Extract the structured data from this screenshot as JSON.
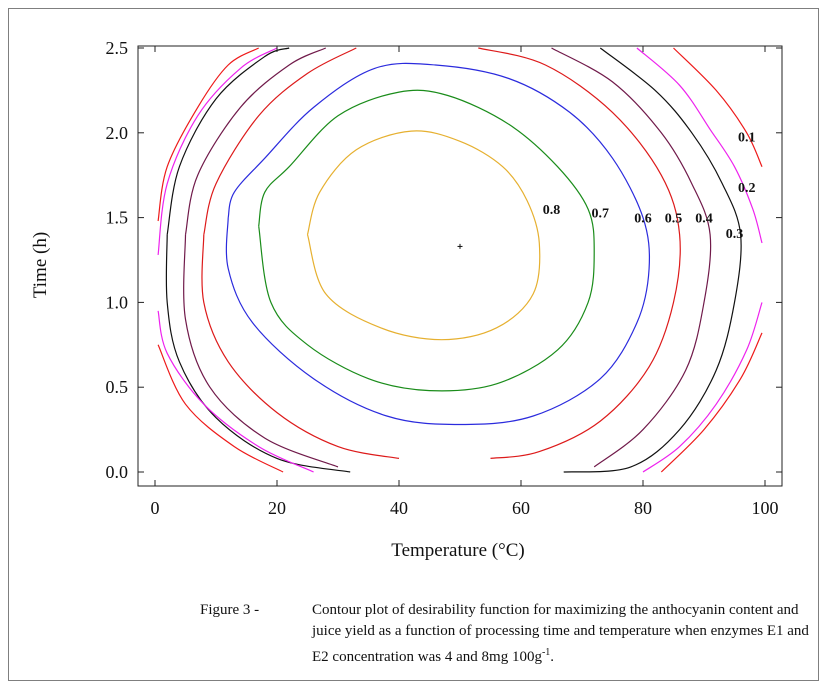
{
  "chart_data": {
    "type": "contour",
    "xlabel": "Temperature (°C)",
    "ylabel": "Time (h)",
    "xlim": [
      0,
      100
    ],
    "ylim": [
      0,
      2.5
    ],
    "xticks": [
      "0",
      "20",
      "40",
      "60",
      "80",
      "100"
    ],
    "yticks": [
      "0.0",
      "0.5",
      "1.0",
      "1.5",
      "2.0",
      "2.5"
    ],
    "optimum": {
      "x": 50,
      "y": 1.33
    },
    "contours": [
      {
        "level": "0.8",
        "color": "#e6b030",
        "closed": true,
        "points": [
          [
            25,
            1.4
          ],
          [
            27,
            1.65
          ],
          [
            33,
            1.9
          ],
          [
            42,
            2.01
          ],
          [
            50,
            1.95
          ],
          [
            57,
            1.8
          ],
          [
            61,
            1.6
          ],
          [
            63,
            1.35
          ],
          [
            62,
            1.05
          ],
          [
            56,
            0.85
          ],
          [
            47,
            0.78
          ],
          [
            37,
            0.85
          ],
          [
            28,
            1.05
          ],
          [
            25,
            1.4
          ]
        ]
      },
      {
        "level": "0.7",
        "color": "#1a8c1a",
        "closed": true,
        "points": [
          [
            17,
            1.45
          ],
          [
            18,
            1.65
          ],
          [
            22,
            1.8
          ],
          [
            30,
            2.1
          ],
          [
            40,
            2.24
          ],
          [
            48,
            2.22
          ],
          [
            58,
            2.05
          ],
          [
            66,
            1.8
          ],
          [
            71,
            1.55
          ],
          [
            72,
            1.3
          ],
          [
            71,
            1.0
          ],
          [
            66,
            0.72
          ],
          [
            56,
            0.52
          ],
          [
            45,
            0.48
          ],
          [
            35,
            0.55
          ],
          [
            25,
            0.75
          ],
          [
            19,
            1.0
          ],
          [
            17,
            1.45
          ]
        ]
      },
      {
        "level": "0.6",
        "color": "#2b2bdd",
        "closed": true,
        "points": [
          [
            12,
            1.5
          ],
          [
            13,
            1.65
          ],
          [
            18,
            1.85
          ],
          [
            26,
            2.15
          ],
          [
            36,
            2.38
          ],
          [
            46,
            2.4
          ],
          [
            58,
            2.32
          ],
          [
            68,
            2.12
          ],
          [
            75,
            1.85
          ],
          [
            80,
            1.5
          ],
          [
            81,
            1.2
          ],
          [
            79,
            0.88
          ],
          [
            73,
            0.55
          ],
          [
            62,
            0.33
          ],
          [
            50,
            0.28
          ],
          [
            38,
            0.33
          ],
          [
            26,
            0.55
          ],
          [
            16,
            0.88
          ],
          [
            12,
            1.2
          ],
          [
            12,
            1.5
          ]
        ]
      },
      {
        "level": "0.5",
        "color": "#dd1a1a",
        "closed": false,
        "segments": [
          [
            [
              8,
              1.4
            ],
            [
              10,
              1.7
            ],
            [
              17,
              2.1
            ],
            [
              25,
              2.35
            ],
            [
              33,
              2.5
            ]
          ],
          [
            [
              53,
              2.5
            ],
            [
              64,
              2.4
            ],
            [
              75,
              2.12
            ],
            [
              83,
              1.75
            ],
            [
              86,
              1.4
            ],
            [
              85,
              1.0
            ],
            [
              81,
              0.62
            ],
            [
              73,
              0.3
            ],
            [
              63,
              0.12
            ],
            [
              55,
              0.08
            ]
          ],
          [
            [
              40,
              0.08
            ],
            [
              30,
              0.15
            ],
            [
              20,
              0.35
            ],
            [
              12,
              0.65
            ],
            [
              8,
              1.0
            ],
            [
              8,
              1.4
            ]
          ]
        ]
      },
      {
        "level": "0.4",
        "color": "#701a4a",
        "closed": false,
        "segments": [
          [
            [
              5,
              1.4
            ],
            [
              7,
              1.75
            ],
            [
              14,
              2.15
            ],
            [
              22,
              2.4
            ],
            [
              28,
              2.5
            ]
          ],
          [
            [
              65,
              2.5
            ],
            [
              75,
              2.3
            ],
            [
              83,
              2.0
            ],
            [
              88,
              1.7
            ],
            [
              91,
              1.4
            ],
            [
              90,
              1.0
            ],
            [
              87,
              0.6
            ],
            [
              80,
              0.25
            ],
            [
              72,
              0.03
            ]
          ],
          [
            [
              30,
              0.03
            ],
            [
              18,
              0.2
            ],
            [
              9,
              0.5
            ],
            [
              5,
              0.9
            ],
            [
              5,
              1.4
            ]
          ]
        ]
      },
      {
        "level": "0.3",
        "color": "#111111",
        "closed": false,
        "segments": [
          [
            [
              2,
              1.4
            ],
            [
              4,
              1.8
            ],
            [
              10,
              2.2
            ],
            [
              18,
              2.45
            ],
            [
              22,
              2.5
            ]
          ],
          [
            [
              73,
              2.5
            ],
            [
              82,
              2.25
            ],
            [
              88,
              2.0
            ],
            [
              93,
              1.7
            ],
            [
              96,
              1.4
            ],
            [
              95,
              1.0
            ],
            [
              92,
              0.6
            ],
            [
              86,
              0.25
            ],
            [
              78,
              0.03
            ],
            [
              67,
              0.0
            ]
          ],
          [
            [
              32,
              0.0
            ],
            [
              20,
              0.08
            ],
            [
              10,
              0.32
            ],
            [
              4,
              0.65
            ],
            [
              2,
              1.0
            ],
            [
              2,
              1.4
            ]
          ]
        ]
      },
      {
        "level": "0.2",
        "color": "#ee22ee",
        "closed": false,
        "segments": [
          [
            [
              0.5,
              1.28
            ],
            [
              2,
              1.7
            ],
            [
              7,
              2.1
            ],
            [
              14,
              2.38
            ],
            [
              20,
              2.5
            ]
          ],
          [
            [
              79,
              2.5
            ],
            [
              86,
              2.28
            ],
            [
              91,
              2.02
            ],
            [
              95,
              1.8
            ],
            [
              98,
              1.55
            ],
            [
              99.5,
              1.35
            ]
          ],
          [
            [
              99.5,
              1.0
            ],
            [
              97,
              0.72
            ],
            [
              92,
              0.4
            ],
            [
              86,
              0.15
            ],
            [
              80,
              0.0
            ]
          ],
          [
            [
              26,
              0.0
            ],
            [
              17,
              0.15
            ],
            [
              8,
              0.4
            ],
            [
              2,
              0.7
            ],
            [
              0.5,
              0.95
            ]
          ]
        ]
      },
      {
        "level": "0.1",
        "color": "#ee1a1a",
        "closed": false,
        "segments": [
          [
            [
              0.5,
              1.48
            ],
            [
              2,
              1.8
            ],
            [
              7,
              2.15
            ],
            [
              12,
              2.4
            ],
            [
              17,
              2.5
            ]
          ],
          [
            [
              85,
              2.5
            ],
            [
              92,
              2.25
            ],
            [
              97,
              2.0
            ],
            [
              99.5,
              1.8
            ]
          ],
          [
            [
              99.5,
              0.82
            ],
            [
              96,
              0.55
            ],
            [
              90,
              0.25
            ],
            [
              83,
              0.0
            ]
          ],
          [
            [
              21,
              0.0
            ],
            [
              13,
              0.15
            ],
            [
              5,
              0.4
            ],
            [
              0.5,
              0.75
            ]
          ]
        ]
      }
    ],
    "contour_labels": [
      {
        "text": "0.1",
        "x": 97,
        "y": 1.95
      },
      {
        "text": "0.2",
        "x": 97,
        "y": 1.65
      },
      {
        "text": "0.3",
        "x": 95,
        "y": 1.38
      },
      {
        "text": "0.4",
        "x": 90,
        "y": 1.47
      },
      {
        "text": "0.5",
        "x": 85,
        "y": 1.47
      },
      {
        "text": "0.6",
        "x": 80,
        "y": 1.47
      },
      {
        "text": "0.7",
        "x": 73,
        "y": 1.5
      },
      {
        "text": "0.8",
        "x": 65,
        "y": 1.52
      }
    ]
  },
  "caption": {
    "lead": "Figure 3 - ",
    "text": "Contour plot of desirability function for maximizing the anthocyanin content and juice yield as a function of processing time and temperature when enzymes E1 and E2 concentration was 4 and 8mg 100g",
    "sup": "-1",
    "tail": "."
  }
}
